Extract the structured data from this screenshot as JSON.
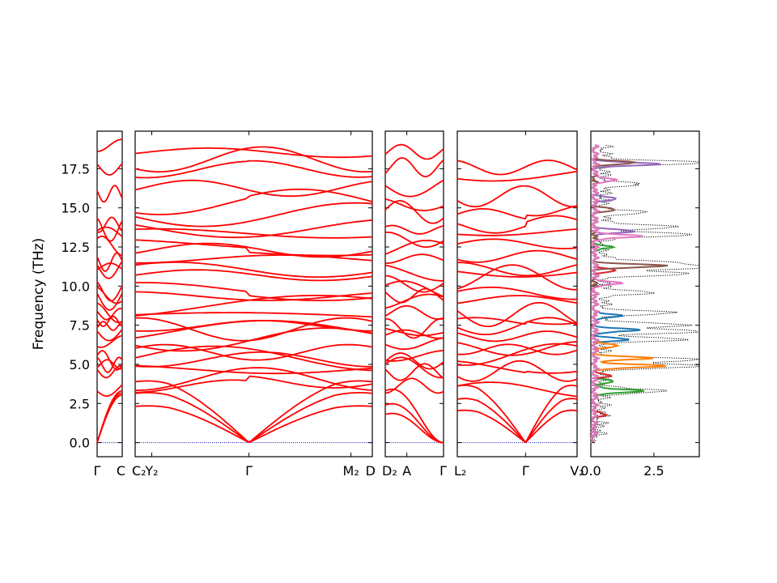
{
  "chart_data": {
    "type": "line",
    "ylabel": "Frequency (THz)",
    "ylim": [
      -0.9,
      19.9
    ],
    "yticks": [
      "0.0",
      "2.5",
      "5.0",
      "7.5",
      "10.0",
      "12.5",
      "15.0",
      "17.5"
    ],
    "yticks_values": [
      0,
      2.5,
      5,
      7.5,
      10,
      12.5,
      15,
      17.5
    ],
    "line_color": "#ff0000",
    "zero_line_color": "#0000aa",
    "panels": [
      {
        "segment": "Γ–C",
        "xticks": [
          {
            "label": "Γ",
            "pos": 0
          },
          {
            "label": "C",
            "pos": 1
          }
        ],
        "acoustic_end": [
          3.3,
          3.3,
          3.3
        ],
        "optical": [
          3.4,
          4.6,
          4.9,
          5.2,
          5.4,
          6.3,
          7.1,
          7.4,
          7.8,
          8.3,
          8.6,
          9.4,
          9.7,
          10.0,
          11.1,
          11.3,
          11.7,
          12.8,
          13.4,
          13.7,
          14.0,
          16.0,
          17.7,
          18.8
        ]
      },
      {
        "segment": "C2–Y2–Γ–M2–D",
        "xticks": [
          {
            "label": "C₂",
            "pos": 0.0
          },
          {
            "label": "Y₂",
            "pos": 0.07
          },
          {
            "label": "Γ",
            "pos": 0.48
          },
          {
            "label": "M₂",
            "pos": 0.91
          },
          {
            "label": "D",
            "pos": 1.0
          }
        ],
        "acoustic_peak": [
          4.2,
          3.4,
          2.5
        ],
        "optical": [
          3.4,
          3.7,
          4.8,
          5.1,
          5.4,
          5.9,
          6.4,
          6.9,
          7.3,
          7.6,
          8.1,
          8.4,
          9.5,
          10.0,
          10.7,
          11.2,
          11.6,
          12.2,
          12.8,
          13.5,
          13.8,
          14.5,
          15.0,
          16.2,
          17.2,
          17.8,
          18.5
        ]
      },
      {
        "segment": "D2–A–Γ",
        "xticks": [
          {
            "label": "D₂",
            "pos": 0
          },
          {
            "label": "A",
            "pos": 0.37
          },
          {
            "label": "Γ",
            "pos": 1
          }
        ],
        "acoustic_start": [
          3.3,
          2.4,
          1.8
        ],
        "optical": [
          3.4,
          4.6,
          4.9,
          5.2,
          5.4,
          6.3,
          6.9,
          7.2,
          7.6,
          8.2,
          8.8,
          9.5,
          9.9,
          10.4,
          11.1,
          11.6,
          12.2,
          13.2,
          13.7,
          14.8,
          15.4,
          16.4,
          17.4,
          18.5
        ]
      },
      {
        "segment": "L2–Γ–V2",
        "xticks": [
          {
            "label": "L₂",
            "pos": 0
          },
          {
            "label": "Γ",
            "pos": 0.57
          },
          {
            "label": "V₂",
            "pos": 1
          }
        ],
        "acoustic_peak": [
          3.9,
          3.0,
          2.2
        ],
        "optical": [
          3.5,
          4.4,
          5.0,
          5.3,
          5.8,
          6.2,
          6.9,
          7.4,
          7.8,
          8.3,
          9.0,
          9.6,
          10.2,
          10.9,
          11.3,
          11.8,
          12.7,
          13.4,
          13.9,
          14.6,
          15.6,
          17.0,
          17.8
        ]
      },
      {
        "segment": "DOS",
        "xticks": [
          {
            "label": "0.0",
            "value": 0.0
          },
          {
            "label": "2.5",
            "value": 2.5
          }
        ],
        "xlim": [
          0,
          4.3
        ],
        "series_colors": [
          "#1f77b4",
          "#ff7f0e",
          "#2ca02c",
          "#d62728",
          "#9467bd",
          "#8c564b",
          "#e377c2"
        ],
        "total_peaks": [
          {
            "f": 3.3,
            "h": 2.6
          },
          {
            "f": 4.9,
            "h": 4.2
          },
          {
            "f": 5.3,
            "h": 3.7
          },
          {
            "f": 6.6,
            "h": 3.2
          },
          {
            "f": 7.1,
            "h": 3.8
          },
          {
            "f": 7.5,
            "h": 3.5
          },
          {
            "f": 8.3,
            "h": 2.7
          },
          {
            "f": 9.6,
            "h": 1.9
          },
          {
            "f": 10.8,
            "h": 3.4
          },
          {
            "f": 11.2,
            "h": 4.2
          },
          {
            "f": 11.5,
            "h": 3.0
          },
          {
            "f": 13.3,
            "h": 3.7
          },
          {
            "f": 13.8,
            "h": 3.0
          },
          {
            "f": 14.7,
            "h": 1.6
          },
          {
            "f": 16.5,
            "h": 1.4
          },
          {
            "f": 17.9,
            "h": 4.1
          }
        ],
        "partial_peaks": [
          {
            "series": 0,
            "f": 7.2,
            "h": 1.7
          },
          {
            "series": 0,
            "f": 8.1,
            "h": 1.1
          },
          {
            "series": 0,
            "f": 6.6,
            "h": 1.3
          },
          {
            "series": 1,
            "f": 4.9,
            "h": 2.8
          },
          {
            "series": 1,
            "f": 5.4,
            "h": 2.2
          },
          {
            "series": 1,
            "f": 6.2,
            "h": 1.0
          },
          {
            "series": 2,
            "f": 3.3,
            "h": 2.0
          },
          {
            "series": 2,
            "f": 3.9,
            "h": 0.8
          },
          {
            "series": 2,
            "f": 12.5,
            "h": 0.6
          },
          {
            "series": 3,
            "f": 1.8,
            "h": 0.4
          },
          {
            "series": 3,
            "f": 4.3,
            "h": 0.6
          },
          {
            "series": 3,
            "f": 11.0,
            "h": 0.9
          },
          {
            "series": 4,
            "f": 13.5,
            "h": 1.6
          },
          {
            "series": 4,
            "f": 17.8,
            "h": 2.5
          },
          {
            "series": 4,
            "f": 15.6,
            "h": 0.9
          },
          {
            "series": 5,
            "f": 11.3,
            "h": 2.8
          },
          {
            "series": 5,
            "f": 17.9,
            "h": 1.6
          },
          {
            "series": 5,
            "f": 14.9,
            "h": 0.8
          },
          {
            "series": 6,
            "f": 13.2,
            "h": 1.8
          },
          {
            "series": 6,
            "f": 10.2,
            "h": 1.0
          },
          {
            "series": 6,
            "f": 16.8,
            "h": 0.9
          }
        ]
      }
    ]
  }
}
